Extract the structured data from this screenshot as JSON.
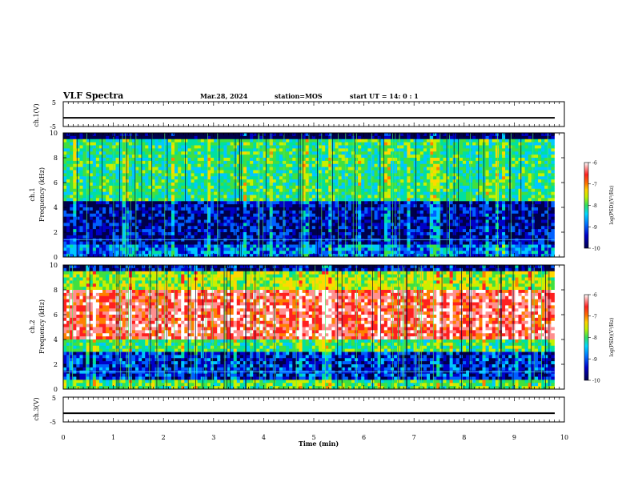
{
  "header": {
    "title": "VLF Spectra",
    "date": "Mar.28, 2024",
    "station": "station=MOS",
    "start": "start  UT =   14: 0   : 1"
  },
  "chart_data": [
    {
      "type": "line",
      "panel": "ch1-waveform",
      "ylabel": "ch.1(V)",
      "ylim": [
        -5,
        5
      ],
      "yticks": [
        "5",
        "-5"
      ],
      "xlim": [
        0,
        10
      ],
      "baseline_value": -1.5
    },
    {
      "type": "heatmap",
      "panel": "ch1-spectrogram",
      "ylabel_top": "ch.1",
      "ylabel": "Frequency (kHz)",
      "ylim": [
        0,
        10
      ],
      "yticks": [
        "0",
        "2",
        "4",
        "6",
        "8",
        "10"
      ],
      "xlim": [
        0,
        9.8
      ],
      "colorbar": {
        "label": "log(PSD)(V²/Hz)",
        "range": [
          -10,
          -6
        ],
        "ticks": [
          "-6",
          "-7",
          "-8",
          "-9",
          "-10"
        ]
      },
      "description_bands": [
        {
          "freq_range": [
            4.5,
            9.5
          ],
          "level": -8.3
        },
        {
          "freq_range": [
            1.0,
            4.0
          ],
          "level": -9.6
        },
        {
          "freq_range": [
            0.0,
            1.0
          ],
          "level": -9.2
        }
      ]
    },
    {
      "type": "heatmap",
      "panel": "ch2-spectrogram",
      "ylabel_top": "ch.2",
      "ylabel": "Frequency (kHz)",
      "ylim": [
        0,
        10
      ],
      "yticks": [
        "0",
        "2",
        "4",
        "6",
        "8",
        "10"
      ],
      "xlim": [
        0,
        9.8
      ],
      "colorbar": {
        "label": "log(PSD)(V²/Hz)",
        "range": [
          -10,
          -6
        ],
        "ticks": [
          "-6",
          "-7",
          "-8",
          "-9",
          "-10"
        ]
      },
      "description_bands": [
        {
          "freq_range": [
            4.0,
            8.0
          ],
          "level": -6.8
        },
        {
          "freq_range": [
            8.0,
            10.0
          ],
          "level": -7.9
        },
        {
          "freq_range": [
            0.0,
            3.0
          ],
          "level": -9.3
        }
      ]
    },
    {
      "type": "line",
      "panel": "ch3-waveform",
      "ylabel": "ch.3(V)",
      "ylim": [
        -5,
        5
      ],
      "yticks": [
        "5",
        "-5"
      ],
      "xlim": [
        0,
        10
      ],
      "baseline_value": -1.5
    }
  ],
  "xaxis": {
    "label": "Time (min)",
    "ticks": [
      "0",
      "1",
      "2",
      "3",
      "4",
      "5",
      "6",
      "7",
      "8",
      "9",
      "10"
    ]
  },
  "colors": {
    "colormap": [
      "#00004a",
      "#0000c8",
      "#0060ff",
      "#00c8ff",
      "#00e0a0",
      "#40e040",
      "#c8f000",
      "#ffd800",
      "#ff8000",
      "#ff2020",
      "#ff9090",
      "#ffffff"
    ]
  }
}
